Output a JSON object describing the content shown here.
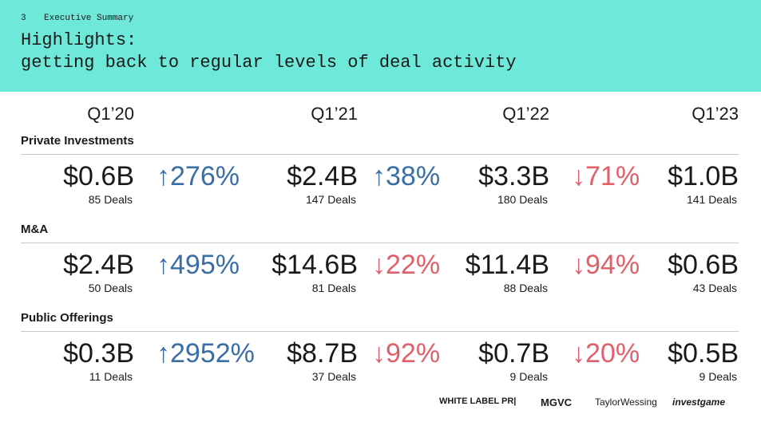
{
  "header": {
    "page_number": "3",
    "section": "Executive Summary",
    "title_lines": [
      "Highlights:",
      "getting back to regular levels of deal activity"
    ]
  },
  "periods": [
    "Q1’20",
    "Q1’21",
    "Q1’22",
    "Q1’23"
  ],
  "groups": [
    {
      "label": "Private Investments",
      "values": [
        "$0.6B",
        "$2.4B",
        "$3.3B",
        "$1.0B"
      ],
      "deals": [
        "85 Deals",
        "147 Deals",
        "180 Deals",
        "141 Deals"
      ],
      "changes": [
        {
          "text": "↑276%",
          "trend": "up"
        },
        {
          "text": "↑38%",
          "trend": "up"
        },
        {
          "text": "↓71%",
          "trend": "down"
        }
      ]
    },
    {
      "label": "M&A",
      "values": [
        "$2.4B",
        "$14.6B",
        "$11.4B",
        "$0.6B"
      ],
      "deals": [
        "50 Deals",
        "81 Deals",
        "88 Deals",
        "43 Deals"
      ],
      "changes": [
        {
          "text": "↑495%",
          "trend": "up"
        },
        {
          "text": "↓22%",
          "trend": "down"
        },
        {
          "text": "↓94%",
          "trend": "down"
        }
      ]
    },
    {
      "label": "Public Offerings",
      "values": [
        "$0.3B",
        "$8.7B",
        "$0.7B",
        "$0.5B"
      ],
      "deals": [
        "11 Deals",
        "37 Deals",
        "9 Deals",
        "9 Deals"
      ],
      "changes": [
        {
          "text": "↑2952%",
          "trend": "up"
        },
        {
          "text": "↓92%",
          "trend": "down"
        },
        {
          "text": "↓20%",
          "trend": "down"
        }
      ]
    }
  ],
  "trend_colors": {
    "up": "#3a6ea5",
    "down": "#e0606a"
  },
  "footer": {
    "logos": [
      "WHITE LABEL PR|",
      "MGVC",
      "TaylorWessing",
      "investgame"
    ]
  }
}
